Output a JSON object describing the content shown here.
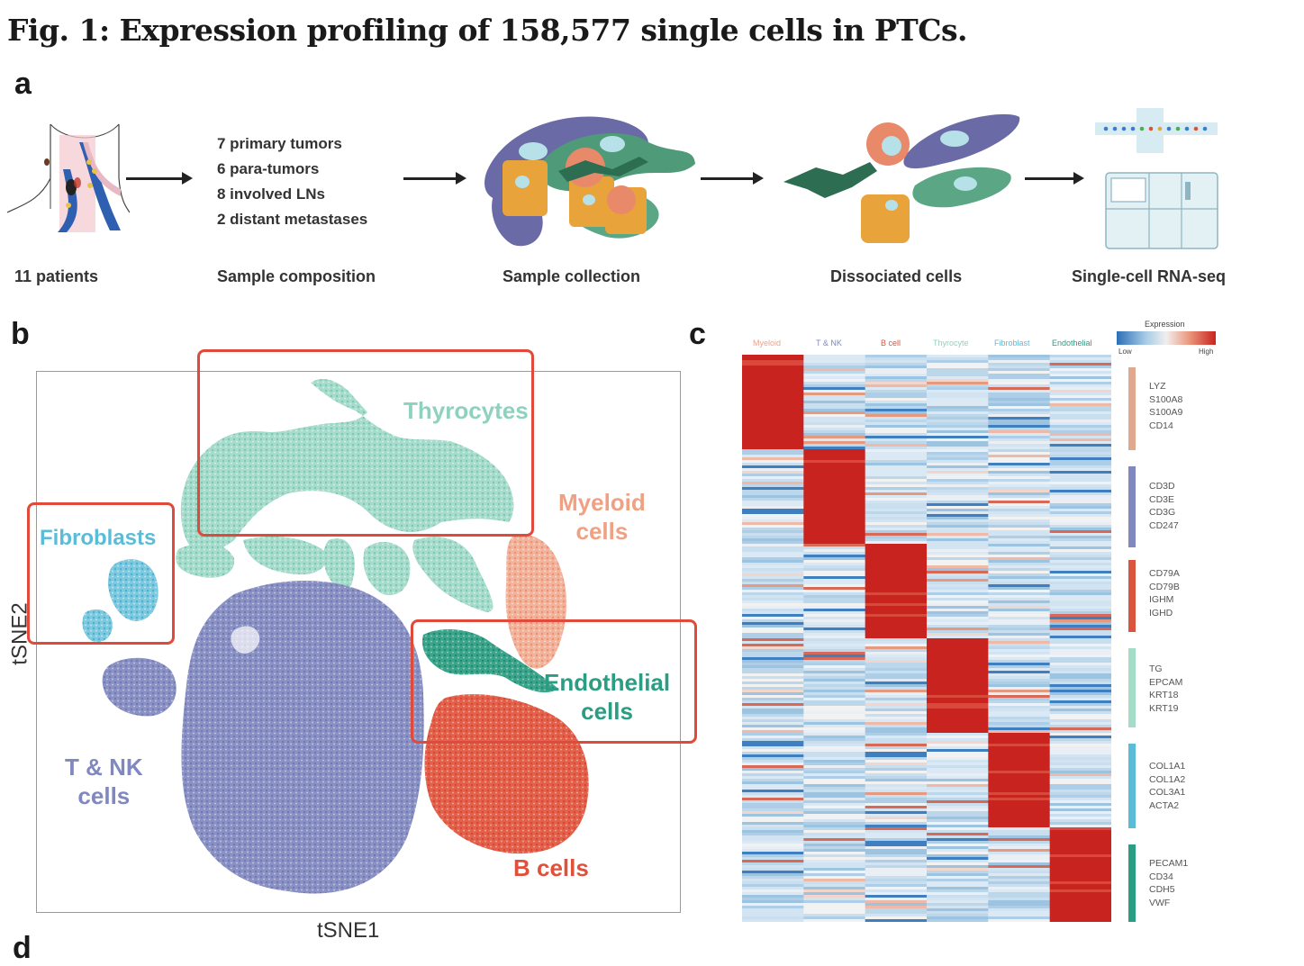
{
  "figure": {
    "title": "Fig. 1: Expression profiling of 158,577 single cells in PTCs.",
    "panels": {
      "a": "a",
      "b": "b",
      "c": "c",
      "d": "d"
    }
  },
  "workflow": {
    "steps": [
      {
        "caption": "11 patients"
      },
      {
        "caption": "Sample composition"
      },
      {
        "caption": "Sample collection"
      },
      {
        "caption": "Dissociated cells"
      },
      {
        "caption": "Single-cell RNA-seq"
      }
    ],
    "composition": [
      "7 primary tumors",
      "6 para-tumors",
      "8 involved LNs",
      "2 distant metastases"
    ]
  },
  "tsne": {
    "xlabel": "tSNE1",
    "ylabel": "tSNE2",
    "clusters": [
      {
        "name": "Thyrocytes",
        "label": "Thyrocytes",
        "color": "#8fd1bf"
      },
      {
        "name": "Myeloid cells",
        "label_line1": "Myeloid",
        "label_line2": "cells",
        "color": "#f0a184"
      },
      {
        "name": "Fibroblasts",
        "label": "Fibroblasts",
        "color": "#5bbcd8"
      },
      {
        "name": "Endothelial cells",
        "label_line1": "Endothelial",
        "label_line2": "cells",
        "color": "#2a9d82"
      },
      {
        "name": "T & NK cells",
        "label_line1": "T & NK",
        "label_line2": "cells",
        "color": "#8088bf"
      },
      {
        "name": "B cells",
        "label": "B cells",
        "color": "#e0513b"
      }
    ],
    "highlight_color": "#e04a3a"
  },
  "heatmap": {
    "legend_title": "Expression",
    "legend_low": "Low",
    "legend_high": "High",
    "columns": [
      {
        "label": "Myeloid",
        "color": "#f0a184"
      },
      {
        "label": "T & NK",
        "color": "#8088bf"
      },
      {
        "label": "B cell",
        "color": "#e0513b"
      },
      {
        "label": "Thyrocyte",
        "color": "#8fd1bf"
      },
      {
        "label": "Fibroblast",
        "color": "#5bbcd8"
      },
      {
        "label": "Endothelial",
        "color": "#2a9d82"
      }
    ],
    "gene_groups": [
      {
        "genes": [
          "LYZ",
          "S100A8",
          "S100A9",
          "CD14"
        ],
        "color": "#e0a88f"
      },
      {
        "genes": [
          "CD3D",
          "CD3E",
          "CD3G",
          "CD247"
        ],
        "color": "#8088bf"
      },
      {
        "genes": [
          "CD79A",
          "CD79B",
          "IGHM",
          "IGHD"
        ],
        "color": "#d9553e"
      },
      {
        "genes": [
          "TG",
          "EPCAM",
          "KRT18",
          "KRT19"
        ],
        "color": "#a5dcc8"
      },
      {
        "genes": [
          "COL1A1",
          "COL1A2",
          "COL3A1",
          "ACTA2"
        ],
        "color": "#5bbcd8"
      },
      {
        "genes": [
          "PECAM1",
          "CD34",
          "CDH5",
          "VWF"
        ],
        "color": "#2a9d82"
      }
    ]
  }
}
